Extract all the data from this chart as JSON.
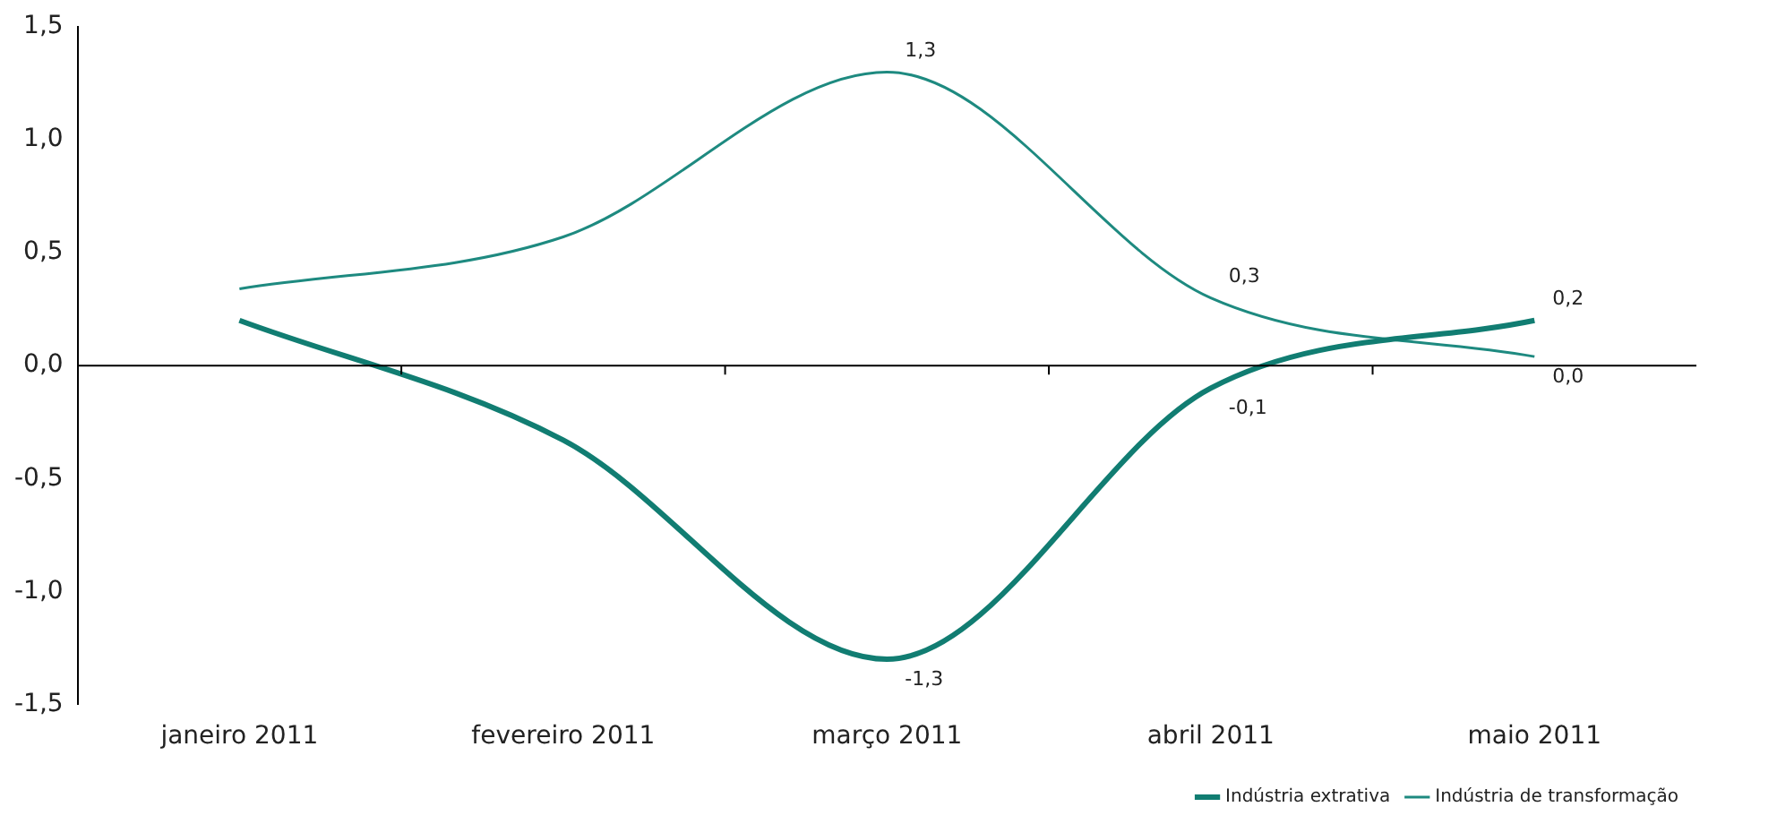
{
  "chart_data": {
    "type": "line",
    "categories": [
      "janeiro 2011",
      "fevereiro 2011",
      "março 2011",
      "abril 2011",
      "maio 2011"
    ],
    "series": [
      {
        "name": "Indústria extrativa",
        "color": "#117d72",
        "values": [
          0.2,
          -0.33,
          -1.3,
          -0.1,
          0.2
        ],
        "value_labels": [
          null,
          null,
          "-1,3",
          "-0,1",
          "0,2"
        ]
      },
      {
        "name": "Indústria de transformação",
        "color": "#1e8a80",
        "values": [
          0.34,
          0.57,
          1.3,
          0.3,
          0.04
        ],
        "value_labels": [
          null,
          null,
          "1,3",
          "0,3",
          "0,0"
        ]
      }
    ],
    "ylim": [
      -1.5,
      1.5
    ],
    "yticks": [
      {
        "value": -1.5,
        "label": "-1,5"
      },
      {
        "value": -1.0,
        "label": "-1,0"
      },
      {
        "value": -0.5,
        "label": "-0,5"
      },
      {
        "value": 0,
        "label": "0,0"
      },
      {
        "value": 0.5,
        "label": "0,5"
      },
      {
        "value": 1.0,
        "label": "1,0"
      },
      {
        "value": 1.5,
        "label": "1,5"
      }
    ],
    "ref_lines": [
      {
        "axis": "y",
        "value": 0,
        "color": "#000000"
      }
    ],
    "grid": false,
    "legend": "bottom right",
    "marker": "none",
    "line_style": "solid"
  }
}
